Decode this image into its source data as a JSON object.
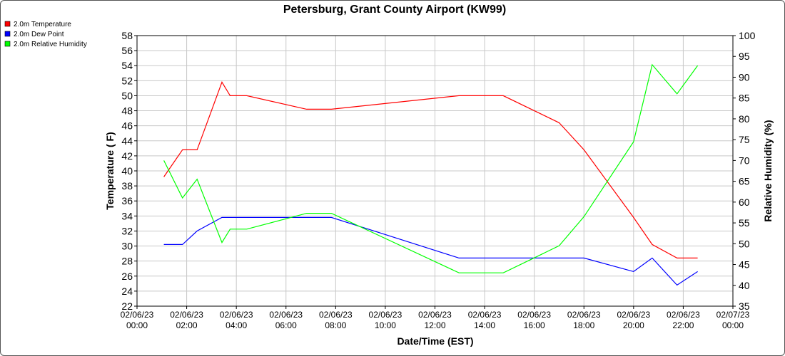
{
  "chart_data": {
    "type": "line",
    "title": "Petersburg, Grant County Airport (KW99)",
    "xlabel": "Date/Time (EST)",
    "ylabel": "Temperature ( F)",
    "y2label": "Relative Humidity (%)",
    "xlim": [
      "02/06/23 00:00",
      "02/07/23 00:00"
    ],
    "ylim": [
      22,
      58
    ],
    "y2lim": [
      35,
      100
    ],
    "grid": true,
    "legend_position": "top-left",
    "x_ticks": [
      {
        "date": "02/06/23",
        "time": "00:00",
        "hour": 0
      },
      {
        "date": "02/06/23",
        "time": "02:00",
        "hour": 2
      },
      {
        "date": "02/06/23",
        "time": "04:00",
        "hour": 4
      },
      {
        "date": "02/06/23",
        "time": "06:00",
        "hour": 6
      },
      {
        "date": "02/06/23",
        "time": "08:00",
        "hour": 8
      },
      {
        "date": "02/06/23",
        "time": "10:00",
        "hour": 10
      },
      {
        "date": "02/06/23",
        "time": "12:00",
        "hour": 12
      },
      {
        "date": "02/06/23",
        "time": "14:00",
        "hour": 14
      },
      {
        "date": "02/06/23",
        "time": "16:00",
        "hour": 16
      },
      {
        "date": "02/06/23",
        "time": "18:00",
        "hour": 18
      },
      {
        "date": "02/06/23",
        "time": "20:00",
        "hour": 20
      },
      {
        "date": "02/06/23",
        "time": "22:00",
        "hour": 22
      },
      {
        "date": "02/07/23",
        "time": "00:00",
        "hour": 24
      }
    ],
    "y_ticks": [
      22,
      24,
      26,
      28,
      30,
      32,
      34,
      36,
      38,
      40,
      42,
      44,
      46,
      48,
      50,
      52,
      54,
      56,
      58
    ],
    "y2_ticks": [
      35,
      40,
      45,
      50,
      55,
      60,
      65,
      70,
      75,
      80,
      85,
      90,
      95,
      100
    ],
    "series": [
      {
        "name": "2.0m Temperature",
        "color": "#ff0000",
        "axis": "left",
        "x": [
          1.08,
          1.83,
          2.42,
          3.42,
          3.75,
          4.42,
          6.83,
          7.83,
          12.97,
          14.75,
          17.0,
          18.0,
          20.0,
          20.75,
          21.75,
          22.58
        ],
        "y": [
          39.2,
          42.8,
          42.8,
          51.8,
          50.0,
          50.0,
          48.2,
          48.2,
          50.0,
          50.0,
          46.4,
          42.8,
          33.8,
          30.2,
          28.4,
          28.4
        ]
      },
      {
        "name": "2.0m Dew Point",
        "color": "#0000ff",
        "axis": "left",
        "x": [
          1.08,
          1.83,
          2.42,
          3.42,
          3.75,
          4.42,
          6.83,
          7.83,
          12.97,
          14.75,
          17.0,
          18.0,
          20.0,
          20.75,
          21.75,
          22.58
        ],
        "y": [
          30.2,
          30.2,
          32.0,
          33.8,
          33.8,
          33.8,
          33.8,
          33.8,
          28.4,
          28.4,
          28.4,
          28.4,
          26.6,
          28.4,
          24.8,
          26.6
        ]
      },
      {
        "name": "2.0m Relative Humidity",
        "color": "#00ff00",
        "axis": "right",
        "x": [
          1.08,
          1.83,
          2.42,
          3.42,
          3.75,
          4.42,
          6.83,
          7.83,
          12.97,
          14.75,
          17.0,
          18.0,
          20.0,
          20.75,
          21.75,
          22.58
        ],
        "y": [
          70.0,
          61.0,
          65.5,
          50.3,
          53.5,
          53.5,
          57.3,
          57.3,
          43.0,
          43.0,
          49.5,
          56.5,
          74.5,
          93.0,
          86.0,
          92.8
        ]
      }
    ]
  }
}
